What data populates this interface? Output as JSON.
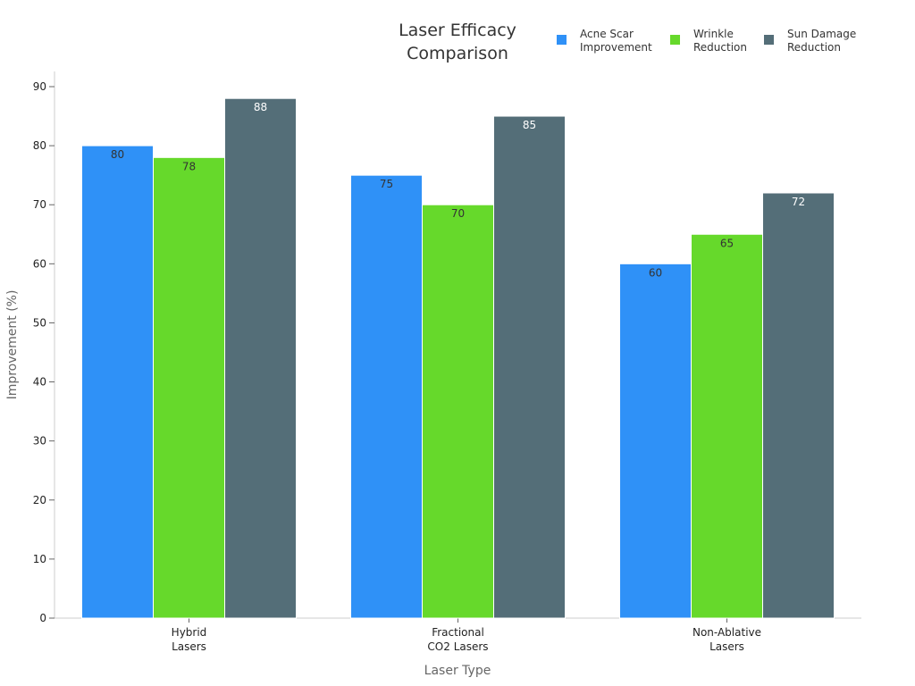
{
  "chart_data": {
    "type": "bar",
    "title": [
      "Laser Efficacy",
      "Comparison"
    ],
    "xlabel": "Laser Type",
    "ylabel": "Improvement (%)",
    "ylim": [
      0,
      90
    ],
    "yticks": [
      0,
      10,
      20,
      30,
      40,
      50,
      60,
      70,
      80,
      90
    ],
    "categories": [
      [
        "Hybrid",
        "Lasers"
      ],
      [
        "Fractional",
        "CO2 Lasers"
      ],
      [
        "Non-Ablative",
        "Lasers"
      ]
    ],
    "series": [
      {
        "name": [
          "Acne Scar",
          "Improvement"
        ],
        "values": [
          80,
          75,
          60
        ],
        "color": "#2f91f7",
        "label_color": "#333333"
      },
      {
        "name": [
          "Wrinkle",
          "Reduction"
        ],
        "values": [
          78,
          70,
          65
        ],
        "color": "#66d92b",
        "label_color": "#333333"
      },
      {
        "name": [
          "Sun Damage",
          "Reduction"
        ],
        "values": [
          88,
          85,
          72
        ],
        "color": "#546e78",
        "label_color": "#ffffff"
      }
    ],
    "grid": false,
    "legend_position": "top-right"
  }
}
